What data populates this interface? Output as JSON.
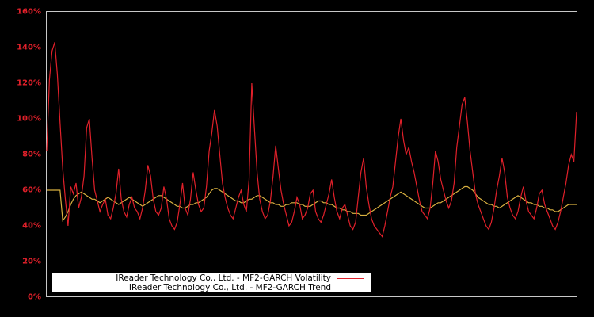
{
  "chart_data": {
    "type": "line",
    "title": "",
    "xlabel": "",
    "ylabel": "",
    "ylim": [
      0,
      160
    ],
    "yticks": [
      "0%",
      "20%",
      "40%",
      "60%",
      "80%",
      "100%",
      "120%",
      "140%",
      "160%"
    ],
    "ytick_values": [
      0,
      20,
      40,
      60,
      80,
      100,
      120,
      140,
      160
    ],
    "grid": false,
    "legend_position": "lower-left",
    "background": "#000000",
    "frame_color": "#c8c8c8",
    "tick_color": "#e0202a",
    "x_index_count": 200,
    "series": [
      {
        "name": "IReader Technology Co., Ltd. - MF2-GARCH Volatility",
        "color": "#e0202a",
        "values": [
          82,
          122,
          138,
          143,
          125,
          98,
          72,
          55,
          40,
          62,
          58,
          64,
          50,
          56,
          68,
          95,
          100,
          78,
          60,
          54,
          48,
          52,
          55,
          46,
          44,
          50,
          58,
          72,
          55,
          48,
          45,
          52,
          56,
          50,
          48,
          44,
          50,
          60,
          74,
          68,
          55,
          48,
          46,
          50,
          62,
          55,
          44,
          40,
          38,
          42,
          52,
          64,
          50,
          46,
          55,
          70,
          60,
          52,
          48,
          50,
          62,
          82,
          92,
          105,
          96,
          80,
          64,
          56,
          50,
          46,
          44,
          50,
          56,
          60,
          52,
          48,
          66,
          120,
          95,
          70,
          55,
          48,
          44,
          46,
          54,
          68,
          85,
          72,
          60,
          52,
          46,
          40,
          42,
          48,
          56,
          52,
          44,
          46,
          50,
          58,
          60,
          48,
          44,
          42,
          46,
          52,
          58,
          66,
          56,
          48,
          44,
          50,
          52,
          46,
          40,
          38,
          42,
          56,
          70,
          78,
          62,
          52,
          44,
          40,
          38,
          36,
          34,
          40,
          48,
          56,
          62,
          76,
          90,
          100,
          88,
          80,
          84,
          76,
          70,
          62,
          54,
          48,
          46,
          44,
          50,
          64,
          82,
          76,
          66,
          60,
          54,
          50,
          54,
          64,
          84,
          96,
          108,
          112,
          98,
          82,
          70,
          58,
          52,
          48,
          44,
          40,
          38,
          42,
          50,
          60,
          68,
          78,
          70,
          56,
          50,
          46,
          44,
          48,
          56,
          62,
          54,
          48,
          46,
          44,
          50,
          58,
          60,
          52,
          48,
          44,
          40,
          38,
          42,
          48,
          56,
          64,
          74,
          80,
          76,
          104
        ]
      },
      {
        "name": "IReader Technology Co., Ltd. - MF2-GARCH Trend",
        "color": "#d8b040",
        "values": [
          60,
          60,
          60,
          60,
          60,
          60,
          43,
          45,
          48,
          52,
          55,
          57,
          58,
          59,
          58,
          57,
          56,
          55,
          55,
          54,
          53,
          54,
          55,
          56,
          55,
          54,
          53,
          52,
          53,
          54,
          55,
          56,
          55,
          54,
          53,
          52,
          51,
          52,
          53,
          54,
          55,
          56,
          57,
          57,
          56,
          55,
          54,
          53,
          52,
          51,
          51,
          50,
          50,
          51,
          52,
          52,
          53,
          53,
          54,
          55,
          56,
          58,
          60,
          61,
          61,
          60,
          59,
          58,
          57,
          56,
          55,
          54,
          54,
          53,
          53,
          54,
          55,
          55,
          56,
          57,
          57,
          56,
          55,
          54,
          53,
          53,
          52,
          52,
          51,
          51,
          52,
          52,
          53,
          53,
          53,
          52,
          52,
          51,
          51,
          51,
          52,
          53,
          54,
          54,
          53,
          53,
          52,
          52,
          51,
          50,
          50,
          49,
          49,
          48,
          48,
          47,
          47,
          47,
          46,
          46,
          46,
          47,
          48,
          49,
          50,
          51,
          52,
          53,
          54,
          55,
          56,
          57,
          58,
          59,
          58,
          57,
          56,
          55,
          54,
          53,
          52,
          51,
          50,
          50,
          50,
          51,
          52,
          53,
          53,
          54,
          55,
          56,
          57,
          58,
          59,
          60,
          61,
          62,
          62,
          61,
          60,
          58,
          56,
          55,
          54,
          53,
          52,
          52,
          51,
          51,
          50,
          51,
          52,
          53,
          54,
          55,
          56,
          57,
          56,
          55,
          54,
          53,
          53,
          52,
          52,
          51,
          51,
          50,
          50,
          49,
          49,
          48,
          48,
          49,
          50,
          51,
          52,
          52,
          52,
          52
        ]
      }
    ]
  },
  "legend": {
    "items": [
      {
        "label": "IReader Technology Co., Ltd. - MF2-GARCH Volatility",
        "color": "#e0202a"
      },
      {
        "label": "IReader Technology Co., Ltd. - MF2-GARCH Trend",
        "color": "#d8b040"
      }
    ]
  }
}
